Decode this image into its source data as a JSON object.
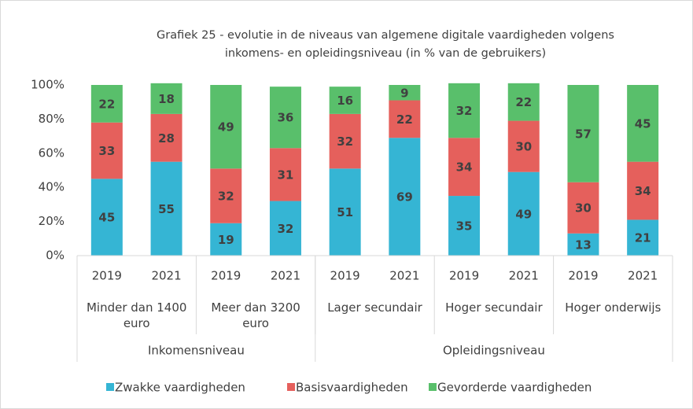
{
  "chart_data": {
    "type": "stacked_bar",
    "title": [
      "Grafiek 25 - evolutie in de niveaus van algemene digitale vaardigheden volgens",
      "inkomens- en opleidingsniveau (in % van de gebruikers)"
    ],
    "categories": [
      "2019",
      "2021",
      "2019",
      "2021",
      "2019",
      "2021",
      "2019",
      "2021",
      "2019",
      "2021"
    ],
    "groups": [
      {
        "label": "Minder dan 1400 euro",
        "span": 2
      },
      {
        "label": "Meer dan 3200 euro",
        "span": 2
      },
      {
        "label": "Lager secundair",
        "span": 2
      },
      {
        "label": "Hoger secundair",
        "span": 2
      },
      {
        "label": "Hoger onderwijs",
        "span": 2
      }
    ],
    "supergroups": [
      {
        "label": "Inkomensniveau",
        "span": 4
      },
      {
        "label": "Opleidingsniveau",
        "span": 6
      }
    ],
    "series": [
      {
        "name": "Zwakke vaardigheden",
        "color": "#35b5d4",
        "values": [
          45,
          55,
          19,
          32,
          51,
          69,
          35,
          49,
          13,
          21
        ]
      },
      {
        "name": "Basisvaardigheden",
        "color": "#e5605c",
        "values": [
          33,
          28,
          32,
          31,
          32,
          22,
          34,
          30,
          30,
          34
        ]
      },
      {
        "name": "Gevorderde vaardigheden",
        "color": "#59bf6b",
        "values": [
          22,
          18,
          49,
          36,
          16,
          9,
          32,
          22,
          57,
          45
        ]
      }
    ],
    "ylim": [
      0,
      100
    ],
    "yticks": [
      {
        "value": 0,
        "label": "0%"
      },
      {
        "value": 20,
        "label": "20%"
      },
      {
        "value": 40,
        "label": "40%"
      },
      {
        "value": 60,
        "label": "60%"
      },
      {
        "value": 80,
        "label": "80%"
      },
      {
        "value": 100,
        "label": "100%"
      }
    ],
    "legend": "bottom"
  }
}
